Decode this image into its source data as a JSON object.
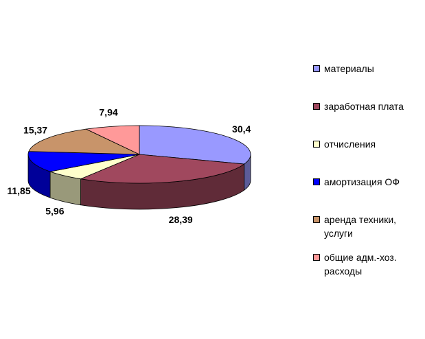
{
  "chart_data": {
    "type": "pie",
    "categories": [
      "материалы",
      "заработная плата",
      "отчисления",
      "амортизация ОФ",
      "аренда техники, услуги",
      "общие адм.-хоз. расходы"
    ],
    "values": [
      30.4,
      28.39,
      5.96,
      11.85,
      15.37,
      7.94
    ],
    "value_labels": [
      "30,4",
      "28,39",
      "5,96",
      "11,85",
      "15,37",
      "7,94"
    ],
    "colors": [
      "#9999ff",
      "#a0485e",
      "#ffffcc",
      "#0000ff",
      "#c8946a",
      "#ff9999"
    ],
    "legend": "right"
  }
}
